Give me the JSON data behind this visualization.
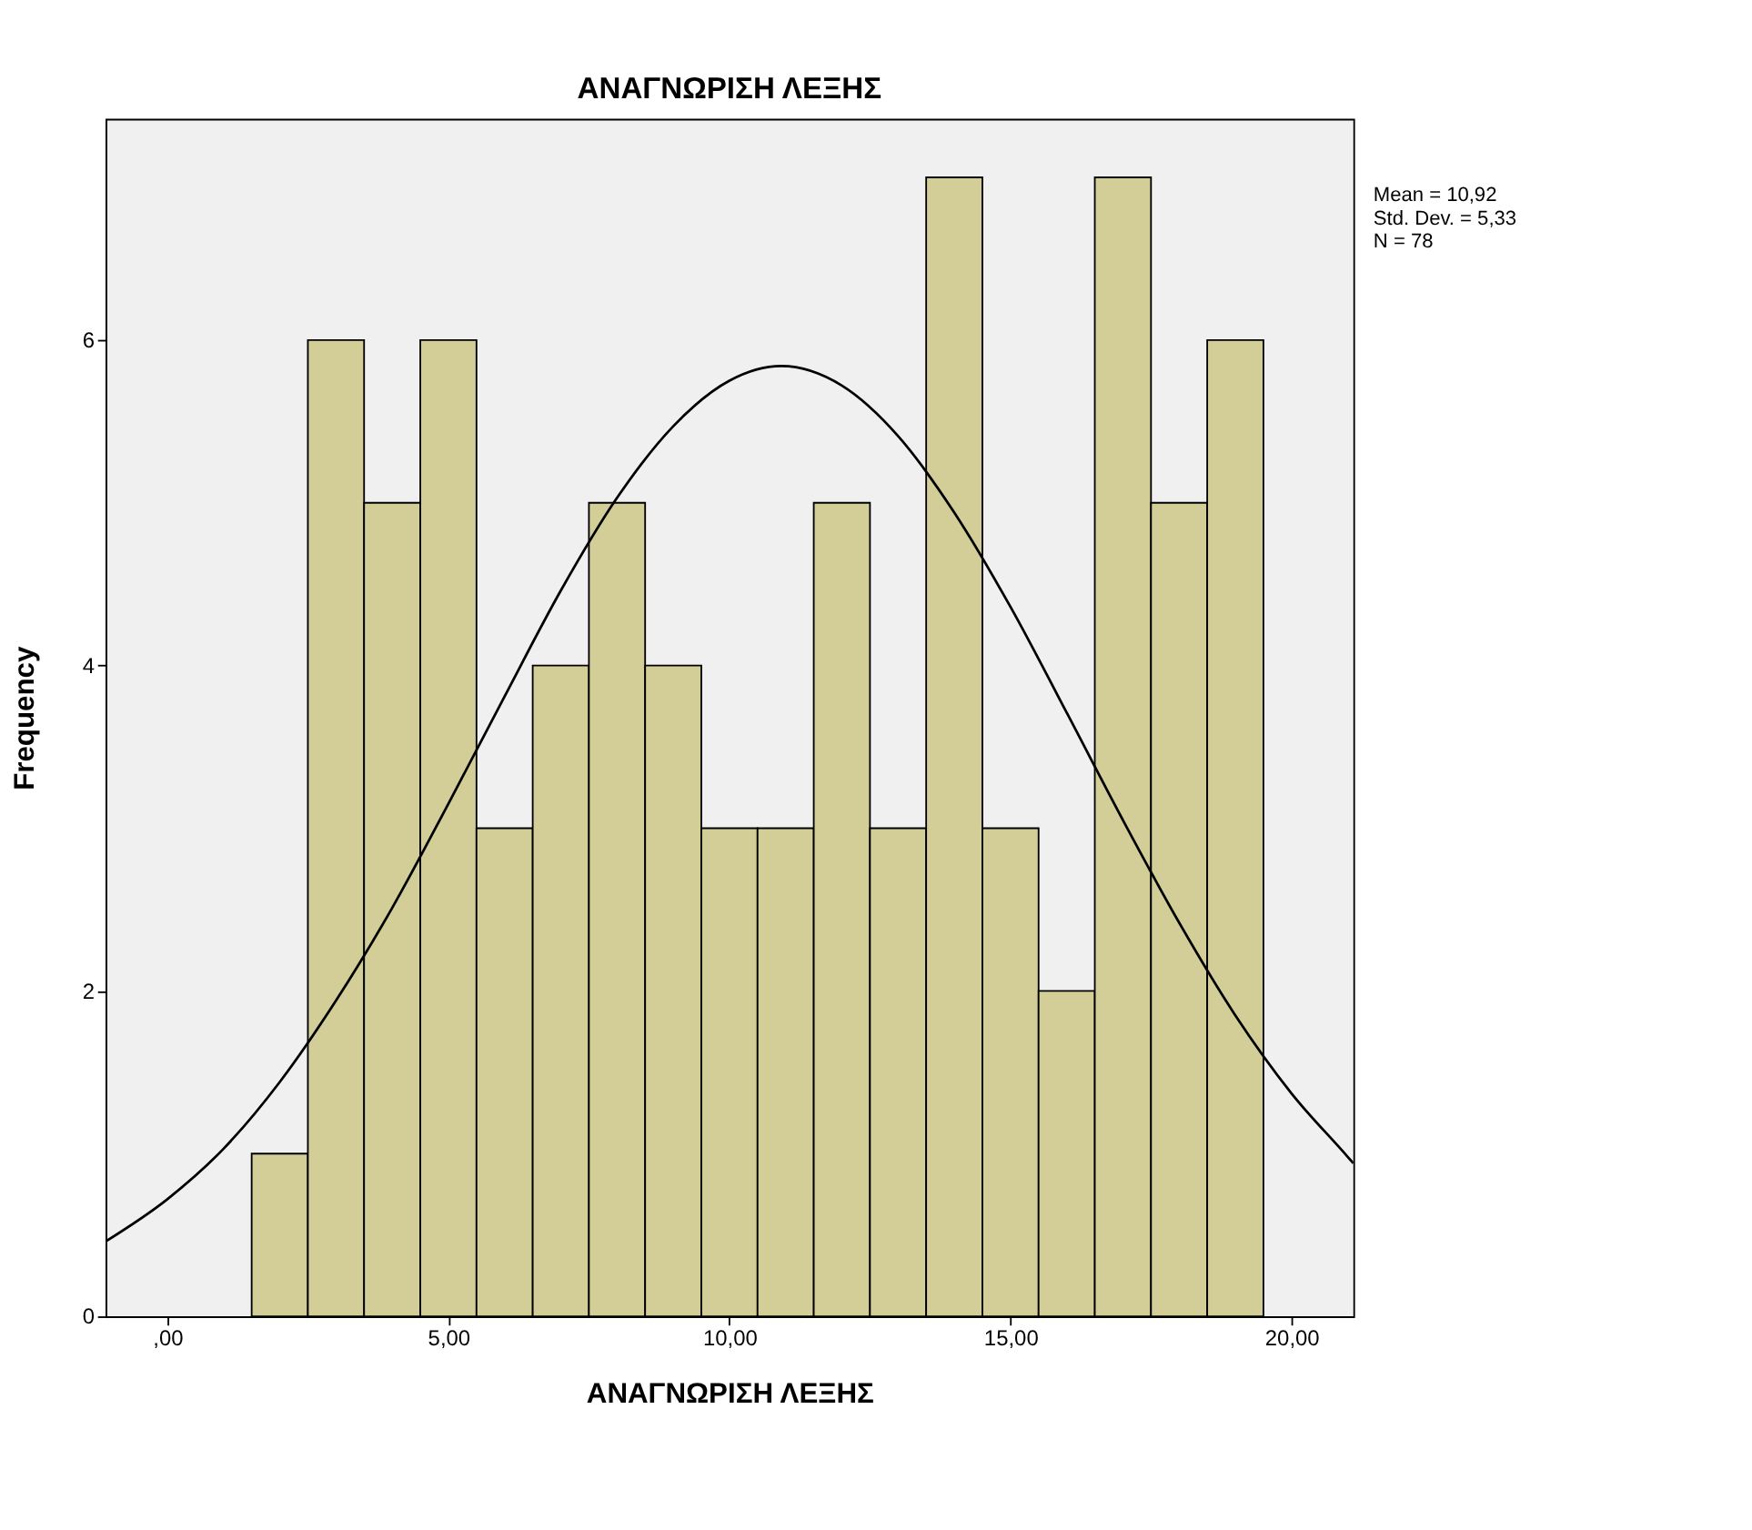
{
  "chart_data": {
    "type": "histogram",
    "title": "ΑΝΑΓΝΩΡΙΣΗ ΛΕΞΗΣ",
    "xlabel": "ΑΝΑΓΝΩΡΙΣΗ ΛΕΞΗΣ",
    "ylabel": "Frequency",
    "bins": [
      1.5,
      2.5,
      3.5,
      4.5,
      5.5,
      6.5,
      7.5,
      8.5,
      9.5,
      10.5,
      11.5,
      12.5,
      13.5,
      14.5,
      15.5,
      16.5,
      17.5,
      18.5,
      19.5
    ],
    "values": [
      1,
      6,
      5,
      6,
      3,
      4,
      5,
      4,
      3,
      3,
      5,
      3,
      7,
      3,
      2,
      7,
      5,
      6
    ],
    "color": "#d3ce97",
    "series": [
      {
        "type": "line",
        "color": "#000000",
        "x": [
          -1.1,
          0,
          1,
          2,
          3,
          4,
          5,
          6,
          7,
          8,
          9,
          10,
          10.92,
          12,
          13,
          14,
          15,
          16,
          17,
          18,
          19,
          20,
          21,
          21.1
        ],
        "values": [
          0.46,
          0.72,
          1.03,
          1.44,
          1.94,
          2.51,
          3.15,
          3.81,
          4.46,
          5.03,
          5.47,
          5.75,
          5.84,
          5.72,
          5.41,
          4.94,
          4.36,
          3.71,
          3.05,
          2.42,
          1.85,
          1.37,
          0.98,
          0.94
        ]
      }
    ],
    "xlim": [
      -1.1,
      21.1
    ],
    "ylim": [
      0,
      7.36
    ],
    "xticks": [
      {
        "value": 0,
        "label": ",00"
      },
      {
        "value": 5,
        "label": "5,00"
      },
      {
        "value": 10,
        "label": "10,00"
      },
      {
        "value": 15,
        "label": "15,00"
      },
      {
        "value": 20,
        "label": "20,00"
      }
    ],
    "yticks": [
      0,
      2,
      4,
      6
    ],
    "grid": false,
    "annotations": [
      "Mean = 10,92",
      "Std. Dev. = 5,33",
      "N = 78"
    ]
  }
}
